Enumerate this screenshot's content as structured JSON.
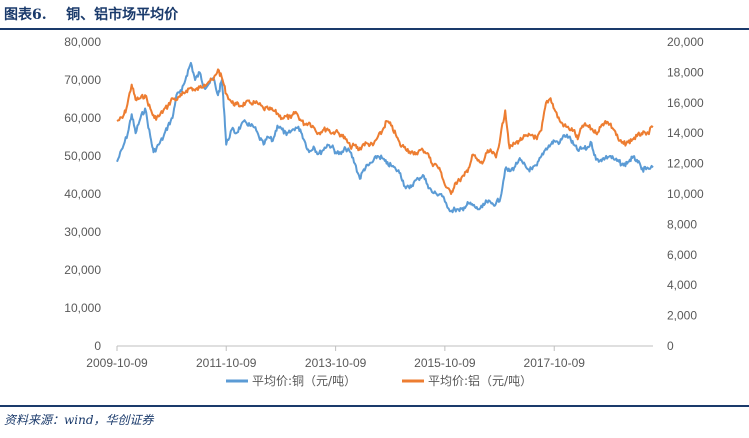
{
  "header": {
    "figure_label": "图表6.",
    "title": "铜、铝市场平均价"
  },
  "footer": {
    "source": "资料来源：wind，华创证券"
  },
  "chart_data": {
    "type": "line",
    "x_ticks": [
      "2009-10-09",
      "2011-10-09",
      "2013-10-09",
      "2015-10-09",
      "2017-10-09"
    ],
    "y_left": {
      "ticks": [
        "0",
        "10,000",
        "20,000",
        "30,000",
        "40,000",
        "50,000",
        "60,000",
        "70,000",
        "80,000"
      ],
      "range": [
        0,
        80000
      ]
    },
    "y_right": {
      "ticks": [
        "0",
        "2,000",
        "4,000",
        "6,000",
        "8,000",
        "10,000",
        "12,000",
        "14,000",
        "16,000",
        "18,000",
        "20,000"
      ],
      "range": [
        0,
        20000
      ]
    },
    "x_range": [
      "2009-10-09",
      "2019-07-31"
    ],
    "grid": false,
    "legend_position": "bottom",
    "series": [
      {
        "name": "平均价:铜（元/吨）",
        "axis": "left",
        "color": "#5b9bd5",
        "points": [
          [
            "2009-10-09",
            48500
          ],
          [
            "2009-11-15",
            52000
          ],
          [
            "2009-12-20",
            56000
          ],
          [
            "2010-01-15",
            61000
          ],
          [
            "2010-02-10",
            56000
          ],
          [
            "2010-03-15",
            60000
          ],
          [
            "2010-04-15",
            62500
          ],
          [
            "2010-05-20",
            55000
          ],
          [
            "2010-06-10",
            51000
          ],
          [
            "2010-07-15",
            53000
          ],
          [
            "2010-08-15",
            55000
          ],
          [
            "2010-09-15",
            58000
          ],
          [
            "2010-10-15",
            60000
          ],
          [
            "2010-11-10",
            66000
          ],
          [
            "2010-12-15",
            67000
          ],
          [
            "2011-01-15",
            71000
          ],
          [
            "2011-02-15",
            74500
          ],
          [
            "2011-03-15",
            70000
          ],
          [
            "2011-04-15",
            72000
          ],
          [
            "2011-05-15",
            68000
          ],
          [
            "2011-06-15",
            69000
          ],
          [
            "2011-07-15",
            70500
          ],
          [
            "2011-08-15",
            66000
          ],
          [
            "2011-09-10",
            70000
          ],
          [
            "2011-09-25",
            62000
          ],
          [
            "2011-10-09",
            53000
          ],
          [
            "2011-11-15",
            57000
          ],
          [
            "2011-12-15",
            56000
          ],
          [
            "2012-01-15",
            58000
          ],
          [
            "2012-02-15",
            59000
          ],
          [
            "2012-03-15",
            58000
          ],
          [
            "2012-04-15",
            57500
          ],
          [
            "2012-05-15",
            55000
          ],
          [
            "2012-06-15",
            53000
          ],
          [
            "2012-07-15",
            55000
          ],
          [
            "2012-08-15",
            54000
          ],
          [
            "2012-09-15",
            58000
          ],
          [
            "2012-10-15",
            57000
          ],
          [
            "2012-11-15",
            55500
          ],
          [
            "2012-12-15",
            56500
          ],
          [
            "2013-01-15",
            57500
          ],
          [
            "2013-02-15",
            57000
          ],
          [
            "2013-03-15",
            54000
          ],
          [
            "2013-04-15",
            51000
          ],
          [
            "2013-05-15",
            52500
          ],
          [
            "2013-06-15",
            50500
          ],
          [
            "2013-07-15",
            51500
          ],
          [
            "2013-08-15",
            53000
          ],
          [
            "2013-09-15",
            52500
          ],
          [
            "2013-10-09",
            51000
          ],
          [
            "2013-11-15",
            50500
          ],
          [
            "2013-12-15",
            52000
          ],
          [
            "2014-01-15",
            51000
          ],
          [
            "2014-02-15",
            48000
          ],
          [
            "2014-03-20",
            44000
          ],
          [
            "2014-04-15",
            46500
          ],
          [
            "2014-05-15",
            47500
          ],
          [
            "2014-06-15",
            48500
          ],
          [
            "2014-07-15",
            50000
          ],
          [
            "2014-08-15",
            49500
          ],
          [
            "2014-09-15",
            48000
          ],
          [
            "2014-10-15",
            47500
          ],
          [
            "2014-11-15",
            46500
          ],
          [
            "2014-12-15",
            45500
          ],
          [
            "2015-01-15",
            42000
          ],
          [
            "2015-02-15",
            41500
          ],
          [
            "2015-03-15",
            43000
          ],
          [
            "2015-04-15",
            44000
          ],
          [
            "2015-05-15",
            45000
          ],
          [
            "2015-06-15",
            42500
          ],
          [
            "2015-07-15",
            40500
          ],
          [
            "2015-08-15",
            40000
          ],
          [
            "2015-09-15",
            40000
          ],
          [
            "2015-10-09",
            38000
          ],
          [
            "2015-11-20",
            35500
          ],
          [
            "2015-12-15",
            36000
          ],
          [
            "2016-01-15",
            35500
          ],
          [
            "2016-02-15",
            36500
          ],
          [
            "2016-03-15",
            37500
          ],
          [
            "2016-04-15",
            37000
          ],
          [
            "2016-05-15",
            36000
          ],
          [
            "2016-06-15",
            36500
          ],
          [
            "2016-07-15",
            38000
          ],
          [
            "2016-08-15",
            37500
          ],
          [
            "2016-09-15",
            37500
          ],
          [
            "2016-10-15",
            39000
          ],
          [
            "2016-11-15",
            46500
          ],
          [
            "2016-12-15",
            46000
          ],
          [
            "2017-01-15",
            47000
          ],
          [
            "2017-02-15",
            49000
          ],
          [
            "2017-03-15",
            48000
          ],
          [
            "2017-04-15",
            46500
          ],
          [
            "2017-05-15",
            46500
          ],
          [
            "2017-06-15",
            47500
          ],
          [
            "2017-07-15",
            50000
          ],
          [
            "2017-08-15",
            52000
          ],
          [
            "2017-09-15",
            53000
          ],
          [
            "2017-10-09",
            54000
          ],
          [
            "2017-11-15",
            53500
          ],
          [
            "2017-12-15",
            55500
          ],
          [
            "2018-01-15",
            55000
          ],
          [
            "2018-02-15",
            53000
          ],
          [
            "2018-03-15",
            51500
          ],
          [
            "2018-04-15",
            52000
          ],
          [
            "2018-05-15",
            52000
          ],
          [
            "2018-06-15",
            53500
          ],
          [
            "2018-07-15",
            49000
          ],
          [
            "2018-08-15",
            49000
          ],
          [
            "2018-09-15",
            49500
          ],
          [
            "2018-10-15",
            50000
          ],
          [
            "2018-11-15",
            49000
          ],
          [
            "2018-12-15",
            48500
          ],
          [
            "2019-01-15",
            47500
          ],
          [
            "2019-02-15",
            48500
          ],
          [
            "2019-03-15",
            49500
          ],
          [
            "2019-04-15",
            49000
          ],
          [
            "2019-05-15",
            46500
          ],
          [
            "2019-06-15",
            46500
          ],
          [
            "2019-07-31",
            47000
          ]
        ]
      },
      {
        "name": "平均价:铝（元/吨）",
        "axis": "right",
        "color": "#ed7d31",
        "points": [
          [
            "2009-10-09",
            14800
          ],
          [
            "2009-11-15",
            15000
          ],
          [
            "2009-12-10",
            15600
          ],
          [
            "2010-01-15",
            17200
          ],
          [
            "2010-02-10",
            16200
          ],
          [
            "2010-03-15",
            16300
          ],
          [
            "2010-04-15",
            16500
          ],
          [
            "2010-05-20",
            15600
          ],
          [
            "2010-06-15",
            15000
          ],
          [
            "2010-07-15",
            15100
          ],
          [
            "2010-08-15",
            15500
          ],
          [
            "2010-09-15",
            15800
          ],
          [
            "2010-10-15",
            16300
          ],
          [
            "2010-11-15",
            16200
          ],
          [
            "2010-12-15",
            16500
          ],
          [
            "2011-01-15",
            16800
          ],
          [
            "2011-02-15",
            17000
          ],
          [
            "2011-03-15",
            16800
          ],
          [
            "2011-04-15",
            17000
          ],
          [
            "2011-05-15",
            17200
          ],
          [
            "2011-06-15",
            17400
          ],
          [
            "2011-07-15",
            17500
          ],
          [
            "2011-08-15",
            18200
          ],
          [
            "2011-09-15",
            17500
          ],
          [
            "2011-10-09",
            16600
          ],
          [
            "2011-11-15",
            16000
          ],
          [
            "2011-12-15",
            15900
          ],
          [
            "2012-01-15",
            15800
          ],
          [
            "2012-02-15",
            16000
          ],
          [
            "2012-03-15",
            16000
          ],
          [
            "2012-04-15",
            16000
          ],
          [
            "2012-05-15",
            15900
          ],
          [
            "2012-06-15",
            15600
          ],
          [
            "2012-07-15",
            15600
          ],
          [
            "2012-08-15",
            15500
          ],
          [
            "2012-09-15",
            15300
          ],
          [
            "2012-10-15",
            15000
          ],
          [
            "2012-11-15",
            15100
          ],
          [
            "2012-12-15",
            15000
          ],
          [
            "2013-01-15",
            15400
          ],
          [
            "2013-02-15",
            14900
          ],
          [
            "2013-03-15",
            14600
          ],
          [
            "2013-04-15",
            14700
          ],
          [
            "2013-05-15",
            14400
          ],
          [
            "2013-06-15",
            14000
          ],
          [
            "2013-07-15",
            14200
          ],
          [
            "2013-08-15",
            14300
          ],
          [
            "2013-09-15",
            14000
          ],
          [
            "2013-10-09",
            14100
          ],
          [
            "2013-11-15",
            13900
          ],
          [
            "2013-12-15",
            13600
          ],
          [
            "2014-01-15",
            13100
          ],
          [
            "2014-02-15",
            13200
          ],
          [
            "2014-03-15",
            12900
          ],
          [
            "2014-04-15",
            13300
          ],
          [
            "2014-05-15",
            13300
          ],
          [
            "2014-06-15",
            13200
          ],
          [
            "2014-07-15",
            13700
          ],
          [
            "2014-08-15",
            14100
          ],
          [
            "2014-09-15",
            14800
          ],
          [
            "2014-10-15",
            14500
          ],
          [
            "2014-11-15",
            13900
          ],
          [
            "2014-12-15",
            13200
          ],
          [
            "2015-01-15",
            13100
          ],
          [
            "2015-02-15",
            12800
          ],
          [
            "2015-03-15",
            12600
          ],
          [
            "2015-04-15",
            12800
          ],
          [
            "2015-05-15",
            12900
          ],
          [
            "2015-06-15",
            12700
          ],
          [
            "2015-07-15",
            12000
          ],
          [
            "2015-08-15",
            11900
          ],
          [
            "2015-09-15",
            11400
          ],
          [
            "2015-10-09",
            10600
          ],
          [
            "2015-11-20",
            10000
          ],
          [
            "2015-12-15",
            10700
          ],
          [
            "2016-01-15",
            10900
          ],
          [
            "2016-02-15",
            11200
          ],
          [
            "2016-03-15",
            11700
          ],
          [
            "2016-04-15",
            12600
          ],
          [
            "2016-05-15",
            12200
          ],
          [
            "2016-06-15",
            12000
          ],
          [
            "2016-07-15",
            12700
          ],
          [
            "2016-08-15",
            12800
          ],
          [
            "2016-09-15",
            12400
          ],
          [
            "2016-10-15",
            13800
          ],
          [
            "2016-11-15",
            15500
          ],
          [
            "2016-12-15",
            13000
          ],
          [
            "2017-01-15",
            13300
          ],
          [
            "2017-02-15",
            13500
          ],
          [
            "2017-03-15",
            13700
          ],
          [
            "2017-04-15",
            13800
          ],
          [
            "2017-05-15",
            13900
          ],
          [
            "2017-06-15",
            13600
          ],
          [
            "2017-07-15",
            14200
          ],
          [
            "2017-08-15",
            16000
          ],
          [
            "2017-09-15",
            16300
          ],
          [
            "2017-10-09",
            15600
          ],
          [
            "2017-11-15",
            14800
          ],
          [
            "2017-12-15",
            14500
          ],
          [
            "2018-01-15",
            14300
          ],
          [
            "2018-02-15",
            14200
          ],
          [
            "2018-03-15",
            13600
          ],
          [
            "2018-04-15",
            14500
          ],
          [
            "2018-05-15",
            14500
          ],
          [
            "2018-06-15",
            14300
          ],
          [
            "2018-07-15",
            14000
          ],
          [
            "2018-08-15",
            14400
          ],
          [
            "2018-09-15",
            14800
          ],
          [
            "2018-10-15",
            14600
          ],
          [
            "2018-11-15",
            14200
          ],
          [
            "2018-12-15",
            13500
          ],
          [
            "2019-01-15",
            13300
          ],
          [
            "2019-02-15",
            13400
          ],
          [
            "2019-03-15",
            13600
          ],
          [
            "2019-04-15",
            13800
          ],
          [
            "2019-05-15",
            14000
          ],
          [
            "2019-06-15",
            13900
          ],
          [
            "2019-07-31",
            14400
          ]
        ]
      }
    ]
  }
}
